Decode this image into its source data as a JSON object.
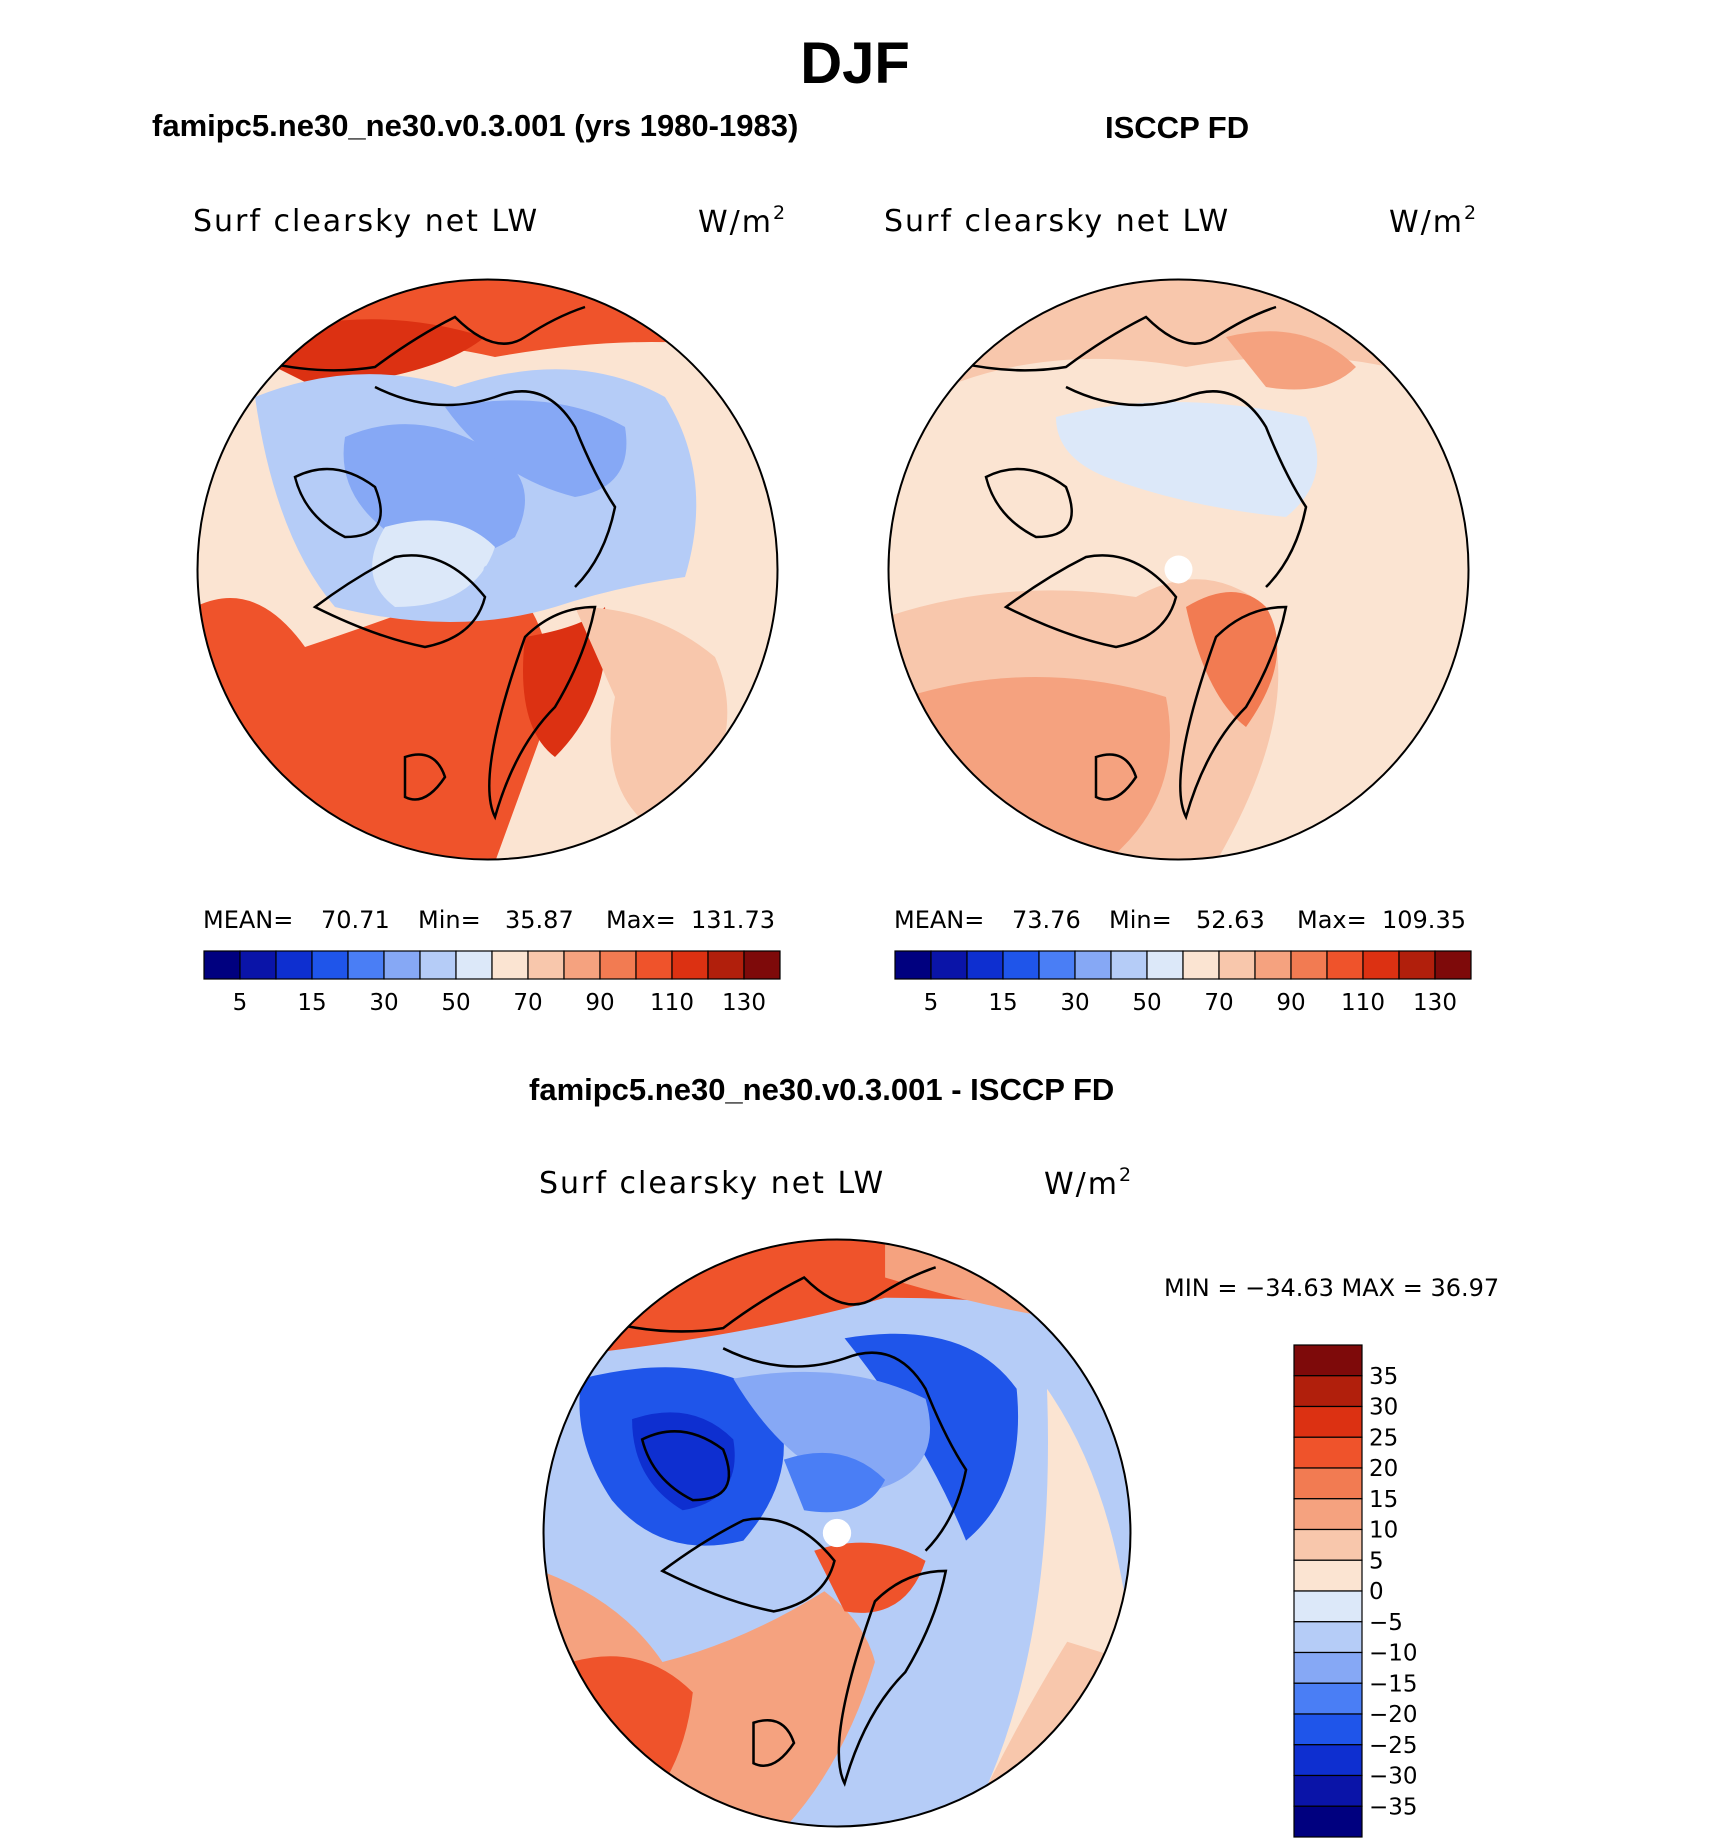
{
  "title": "DJF",
  "palette": {
    "abs": [
      "#00007f",
      "#0a14a8",
      "#0e2fd0",
      "#1f55ea",
      "#4a7ef5",
      "#86a8f5",
      "#b5ccf7",
      "#dce8f9",
      "#fbe4d2",
      "#f8c7ac",
      "#f5a27f",
      "#f27b52",
      "#ef532b",
      "#dc3112",
      "#b11f0c",
      "#7e0a0a"
    ],
    "diff": [
      "#00007f",
      "#0a14a8",
      "#0e2fd0",
      "#1f55ea",
      "#4a7ef5",
      "#86a8f5",
      "#b5ccf7",
      "#dce8f9",
      "#fbe4d2",
      "#f8c7ac",
      "#f5a27f",
      "#f27b52",
      "#ef532b",
      "#dc3112",
      "#b11f0c",
      "#7e0a0a"
    ]
  },
  "panels": {
    "model": {
      "title": "famipc5.ne30_ne30.v0.3.001 (yrs 1980-1983)",
      "variable": "Surf clearsky net LW",
      "units": "W/m",
      "units_exp": "2",
      "stats": {
        "mean_label": "MEAN=",
        "mean": "70.71",
        "min_label": "Min=",
        "min": "35.87",
        "max_label": "Max=",
        "max": "131.73"
      },
      "colorbar_ticks": [
        "5",
        "15",
        "30",
        "50",
        "70",
        "90",
        "110",
        "130"
      ]
    },
    "obs": {
      "title": "ISCCP FD",
      "variable": "Surf clearsky net LW",
      "units": "W/m",
      "units_exp": "2",
      "stats": {
        "mean_label": "MEAN=",
        "mean": "73.76",
        "min_label": "Min=",
        "min": "52.63",
        "max_label": "Max=",
        "max": "109.35"
      },
      "colorbar_ticks": [
        "5",
        "15",
        "30",
        "50",
        "70",
        "90",
        "110",
        "130"
      ]
    },
    "diff": {
      "title": "famipc5.ne30_ne30.v0.3.001 - ISCCP FD",
      "variable": "Surf clearsky net LW",
      "units": "W/m",
      "units_exp": "2",
      "minmax": "MIN = −34.63 MAX =   36.97",
      "colorbar_ticks": [
        "35",
        "30",
        "25",
        "20",
        "15",
        "10",
        "5",
        "0",
        "−5",
        "−10",
        "−15",
        "−20",
        "−25",
        "−30",
        "−35"
      ]
    }
  },
  "chart_data": {
    "type": "heatmap",
    "projection": "north polar stereographic",
    "season": "DJF",
    "variable": "Surf clearsky net LW",
    "units": "W/m2",
    "abs_contour_levels": [
      5,
      10,
      15,
      20,
      30,
      40,
      50,
      60,
      70,
      80,
      90,
      100,
      110,
      120,
      130
    ],
    "diff_contour_levels": [
      -35,
      -30,
      -25,
      -20,
      -15,
      -10,
      -5,
      0,
      5,
      10,
      15,
      20,
      25,
      30,
      35
    ],
    "series": [
      {
        "name": "famipc5.ne30_ne30.v0.3.001 (yrs 1980-1983)",
        "mean": 70.71,
        "min": 35.87,
        "max": 131.73
      },
      {
        "name": "ISCCP FD",
        "mean": 73.76,
        "min": 52.63,
        "max": 109.35
      },
      {
        "name": "famipc5.ne30_ne30.v0.3.001 - ISCCP FD",
        "min": -34.63,
        "max": 36.97
      }
    ]
  }
}
